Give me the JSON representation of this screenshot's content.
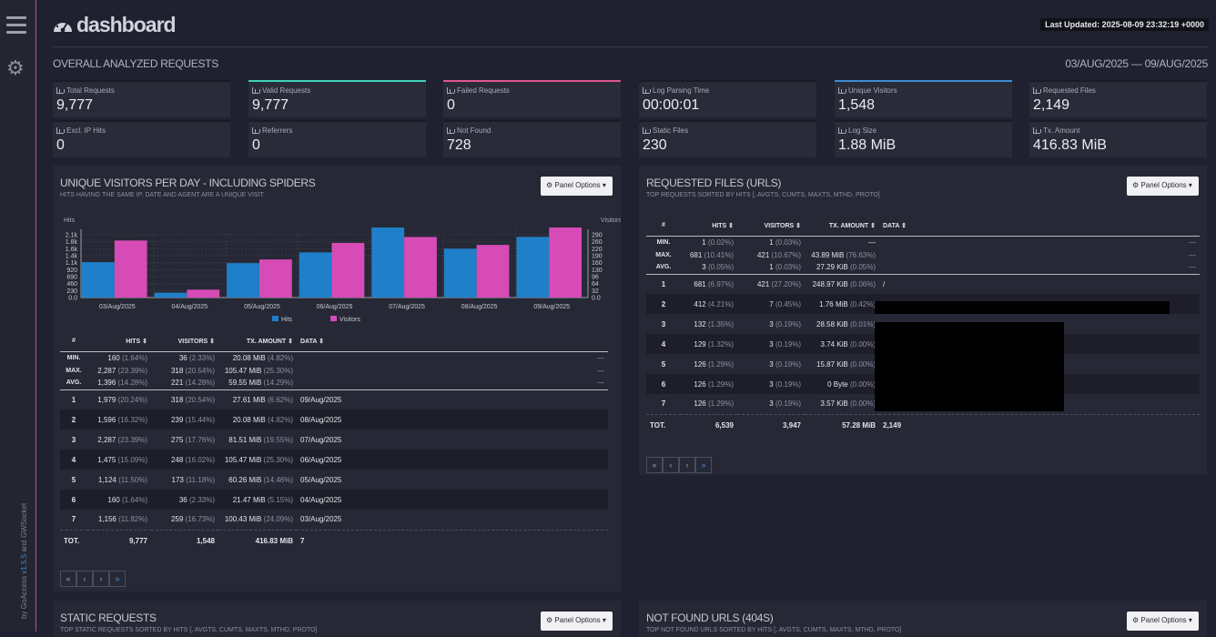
{
  "sidebar": {
    "credit_prefix": "by GoAccess ",
    "credit_version": "v1.5.5",
    "credit_suffix": " and GWSocket"
  },
  "header": {
    "logo": "dashboard",
    "last_updated": "Last Updated: 2025-08-09 23:32:19 +0000",
    "section_title": "OVERALL ANALYZED REQUESTS",
    "date_range": "03/AUG/2025 — 09/AUG/2025"
  },
  "cards": [
    {
      "label": "Total Requests",
      "value": "9,777",
      "accent": ""
    },
    {
      "label": "Valid Requests",
      "value": "9,777",
      "accent": "#3fd2bb"
    },
    {
      "label": "Failed Requests",
      "value": "0",
      "accent": "#e0568f"
    },
    {
      "label": "Log Parsing Time",
      "value": "00:00:01",
      "accent": ""
    },
    {
      "label": "Unique Visitors",
      "value": "1,548",
      "accent": "#3f8bd1"
    },
    {
      "label": "Requested Files",
      "value": "2,149",
      "accent": ""
    },
    {
      "label": "Excl. IP Hits",
      "value": "0",
      "accent": ""
    },
    {
      "label": "Referrers",
      "value": "0",
      "accent": ""
    },
    {
      "label": "Not Found",
      "value": "728",
      "accent": ""
    },
    {
      "label": "Static Files",
      "value": "230",
      "accent": ""
    },
    {
      "label": "Log Size",
      "value": "1.88 MiB",
      "accent": ""
    },
    {
      "label": "Tx. Amount",
      "value": "416.83 MiB",
      "accent": ""
    }
  ],
  "panel_options_label": "Panel Options",
  "visitors": {
    "title": "UNIQUE VISITORS PER DAY - INCLUDING SPIDERS",
    "subtitle": "HITS HAVING THE SAME IP, DATE AND AGENT ARE A UNIQUE VISIT.",
    "headers": [
      "#",
      "HITS",
      "VISITORS",
      "TX. AMOUNT",
      "DATA"
    ],
    "summary": [
      {
        "label": "MIN.",
        "hits": "160",
        "hits_pct": "(1.64%)",
        "vis": "36",
        "vis_pct": "(2.33%)",
        "tx": "20.08 MiB",
        "tx_pct": "(4.82%)",
        "data": "—"
      },
      {
        "label": "MAX.",
        "hits": "2,287",
        "hits_pct": "(23.39%)",
        "vis": "318",
        "vis_pct": "(20.54%)",
        "tx": "105.47 MiB",
        "tx_pct": "(25.30%)",
        "data": "—"
      },
      {
        "label": "AVG.",
        "hits": "1,396",
        "hits_pct": "(14.28%)",
        "vis": "221",
        "vis_pct": "(14.28%)",
        "tx": "59.55 MiB",
        "tx_pct": "(14.29%)",
        "data": "—"
      }
    ],
    "rows": [
      {
        "n": "1",
        "hits": "1,979",
        "hits_pct": "(20.24%)",
        "vis": "318",
        "vis_pct": "(20.54%)",
        "tx": "27.61 MiB",
        "tx_pct": "(6.62%)",
        "data": "09/Aug/2025"
      },
      {
        "n": "2",
        "hits": "1,596",
        "hits_pct": "(16.32%)",
        "vis": "239",
        "vis_pct": "(15.44%)",
        "tx": "20.08 MiB",
        "tx_pct": "(4.82%)",
        "data": "08/Aug/2025"
      },
      {
        "n": "3",
        "hits": "2,287",
        "hits_pct": "(23.39%)",
        "vis": "275",
        "vis_pct": "(17.76%)",
        "tx": "81.51 MiB",
        "tx_pct": "(19.55%)",
        "data": "07/Aug/2025"
      },
      {
        "n": "4",
        "hits": "1,475",
        "hits_pct": "(15.09%)",
        "vis": "248",
        "vis_pct": "(16.02%)",
        "tx": "105.47 MiB",
        "tx_pct": "(25.30%)",
        "data": "06/Aug/2025"
      },
      {
        "n": "5",
        "hits": "1,124",
        "hits_pct": "(11.50%)",
        "vis": "173",
        "vis_pct": "(11.18%)",
        "tx": "60.26 MiB",
        "tx_pct": "(14.46%)",
        "data": "05/Aug/2025"
      },
      {
        "n": "6",
        "hits": "160",
        "hits_pct": "(1.64%)",
        "vis": "36",
        "vis_pct": "(2.33%)",
        "tx": "21.47 MiB",
        "tx_pct": "(5.15%)",
        "data": "04/Aug/2025"
      },
      {
        "n": "7",
        "hits": "1,156",
        "hits_pct": "(11.82%)",
        "vis": "259",
        "vis_pct": "(16.73%)",
        "tx": "100.43 MiB",
        "tx_pct": "(24.09%)",
        "data": "03/Aug/2025"
      }
    ],
    "total": {
      "label": "TOT.",
      "hits": "9,777",
      "vis": "1,548",
      "tx": "416.83 MiB",
      "data": "7"
    }
  },
  "chart_data": {
    "type": "bar",
    "categories": [
      "03/Aug/2025",
      "04/Aug/2025",
      "05/Aug/2025",
      "06/Aug/2025",
      "07/Aug/2025",
      "08/Aug/2025",
      "09/Aug/2025"
    ],
    "series": [
      {
        "name": "Hits",
        "values": [
          1156,
          160,
          1124,
          1475,
          2287,
          1596,
          1979
        ],
        "color": "#1f80c9",
        "axis": "left"
      },
      {
        "name": "Visitors",
        "values": [
          259,
          36,
          173,
          248,
          275,
          239,
          318
        ],
        "color": "#d64bb5",
        "axis": "right"
      }
    ],
    "ylabel": "Hits",
    "y2label": "Visitors",
    "ylim": [
      0,
      2287
    ],
    "y2lim": [
      0,
      318
    ],
    "yticks": [
      "2.1k",
      "1.8k",
      "1.6k",
      "1.4k",
      "1.1k",
      "920",
      "690",
      "460",
      "230",
      "0.0"
    ],
    "y2ticks": [
      "290",
      "260",
      "220",
      "190",
      "160",
      "130",
      "96",
      "64",
      "32",
      "0.0"
    ],
    "grid": true,
    "legend": "bottom"
  },
  "files": {
    "title": "REQUESTED FILES (URLS)",
    "subtitle": "TOP REQUESTS SORTED BY HITS [, AVGTS, CUMTS, MAXTS, MTHD, PROTO]",
    "headers": [
      "#",
      "HITS",
      "VISITORS",
      "TX. AMOUNT",
      "DATA"
    ],
    "summary": [
      {
        "label": "MIN.",
        "hits": "1",
        "hits_pct": "(0.02%)",
        "vis": "1",
        "vis_pct": "(0.03%)",
        "tx": "—",
        "tx_pct": "",
        "data": "—"
      },
      {
        "label": "MAX.",
        "hits": "681",
        "hits_pct": "(10.41%)",
        "vis": "421",
        "vis_pct": "(10.67%)",
        "tx": "43.89 MiB",
        "tx_pct": "(76.63%)",
        "data": "—"
      },
      {
        "label": "AVG.",
        "hits": "3",
        "hits_pct": "(0.05%)",
        "vis": "1",
        "vis_pct": "(0.03%)",
        "tx": "27.29 KiB",
        "tx_pct": "(0.05%)",
        "data": "—"
      }
    ],
    "rows": [
      {
        "n": "1",
        "hits": "681",
        "hits_pct": "(6.97%)",
        "vis": "421",
        "vis_pct": "(27.20%)",
        "tx": "248.97 KiB",
        "tx_pct": "(0.06%)",
        "data": "/"
      },
      {
        "n": "2",
        "hits": "412",
        "hits_pct": "(4.21%)",
        "vis": "7",
        "vis_pct": "(0.45%)",
        "tx": "1.76 MiB",
        "tx_pct": "(0.42%)",
        "data": ""
      },
      {
        "n": "3",
        "hits": "132",
        "hits_pct": "(1.35%)",
        "vis": "3",
        "vis_pct": "(0.19%)",
        "tx": "28.58 KiB",
        "tx_pct": "(0.01%)",
        "data": ""
      },
      {
        "n": "4",
        "hits": "129",
        "hits_pct": "(1.32%)",
        "vis": "3",
        "vis_pct": "(0.19%)",
        "tx": "3.74 KiB",
        "tx_pct": "(0.00%)",
        "data": ""
      },
      {
        "n": "5",
        "hits": "126",
        "hits_pct": "(1.29%)",
        "vis": "3",
        "vis_pct": "(0.19%)",
        "tx": "15.87 KiB",
        "tx_pct": "(0.00%)",
        "data": ""
      },
      {
        "n": "6",
        "hits": "126",
        "hits_pct": "(1.29%)",
        "vis": "3",
        "vis_pct": "(0.19%)",
        "tx": "0 Byte",
        "tx_pct": "(0.00%)",
        "data": ""
      },
      {
        "n": "7",
        "hits": "126",
        "hits_pct": "(1.29%)",
        "vis": "3",
        "vis_pct": "(0.19%)",
        "tx": "3.57 KiB",
        "tx_pct": "(0.00%)",
        "data": ""
      }
    ],
    "total": {
      "label": "TOT.",
      "hits": "6,539",
      "vis": "3,947",
      "tx": "57.28 MiB",
      "data": "2,149"
    }
  },
  "static": {
    "title": "STATIC REQUESTS",
    "subtitle": "TOP STATIC REQUESTS SORTED BY HITS [, AVGTS, CUMTS, MAXTS, MTHD, PROTO]"
  },
  "notfound": {
    "title": "NOT FOUND URLS (404S)",
    "subtitle": "TOP NOT FOUND URLS SORTED BY HITS [, AVGTS, CUMTS, MAXTS, MTHD, PROTO]"
  },
  "pager": [
    "«",
    "‹",
    "›",
    "»"
  ]
}
